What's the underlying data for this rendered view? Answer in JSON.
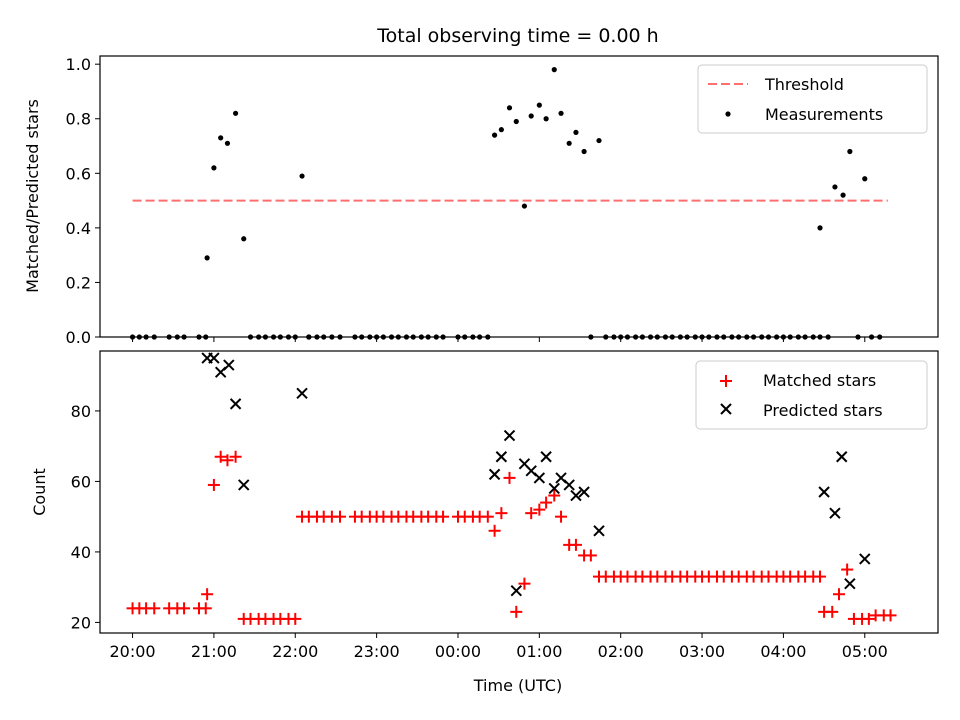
{
  "figure": {
    "title": "Total observing time = 0.00 h",
    "xlabel": "Time (UTC)"
  },
  "chart_data": [
    {
      "type": "scatter",
      "ylabel": "Matched/Predicted stars",
      "xlim": [
        19.6,
        5.9
      ],
      "x_ticks": [
        "20:00",
        "21:00",
        "22:00",
        "23:00",
        "00:00",
        "01:00",
        "02:00",
        "03:00",
        "04:00",
        "05:00"
      ],
      "ylim": [
        0.0,
        1.03
      ],
      "y_ticks": [
        "0.0",
        "0.2",
        "0.4",
        "0.6",
        "0.8",
        "1.0"
      ],
      "legend": {
        "position": "upper right",
        "entries": [
          "Threshold",
          "Measurements"
        ]
      },
      "threshold": {
        "name": "Threshold",
        "value": 0.5,
        "x_range": [
          "20:00",
          "05:17"
        ],
        "color": "#ff6f6f",
        "style": "dashed"
      },
      "series": [
        {
          "name": "Measurements",
          "color": "#000000",
          "marker": "dot",
          "points": [
            [
              "20:00",
              0
            ],
            [
              "20:05",
              0
            ],
            [
              "20:10",
              0
            ],
            [
              "20:16",
              0
            ],
            [
              "20:27",
              0
            ],
            [
              "20:33",
              0
            ],
            [
              "20:38",
              0
            ],
            [
              "20:49",
              0
            ],
            [
              "20:54",
              0
            ],
            [
              "20:55",
              0.29
            ],
            [
              "21:00",
              0.62
            ],
            [
              "21:05",
              0.73
            ],
            [
              "21:10",
              0.71
            ],
            [
              "21:16",
              0.82
            ],
            [
              "21:22",
              0.36
            ],
            [
              "21:27",
              0
            ],
            [
              "21:33",
              0
            ],
            [
              "21:38",
              0
            ],
            [
              "21:44",
              0
            ],
            [
              "21:49",
              0
            ],
            [
              "21:55",
              0
            ],
            [
              "22:00",
              0
            ],
            [
              "22:10",
              0
            ],
            [
              "22:05",
              0.59
            ],
            [
              "22:10",
              0
            ],
            [
              "22:16",
              0
            ],
            [
              "22:21",
              0
            ],
            [
              "22:27",
              0
            ],
            [
              "22:33",
              0
            ],
            [
              "22:44",
              0
            ],
            [
              "22:49",
              0
            ],
            [
              "22:55",
              0
            ],
            [
              "23:00",
              0
            ],
            [
              "23:05",
              0
            ],
            [
              "23:11",
              0
            ],
            [
              "23:16",
              0
            ],
            [
              "23:22",
              0
            ],
            [
              "23:27",
              0
            ],
            [
              "23:33",
              0
            ],
            [
              "23:38",
              0
            ],
            [
              "23:44",
              0
            ],
            [
              "23:49",
              0
            ],
            [
              "00:00",
              0
            ],
            [
              "00:05",
              0
            ],
            [
              "00:11",
              0
            ],
            [
              "00:16",
              0
            ],
            [
              "00:22",
              0
            ],
            [
              "00:27",
              0.74
            ],
            [
              "00:32",
              0.76
            ],
            [
              "00:38",
              0.84
            ],
            [
              "00:43",
              0.79
            ],
            [
              "00:49",
              0.48
            ],
            [
              "00:54",
              0.81
            ],
            [
              "01:00",
              0.85
            ],
            [
              "01:05",
              0.8
            ],
            [
              "01:11",
              0.98
            ],
            [
              "01:16",
              0.82
            ],
            [
              "01:22",
              0.71
            ],
            [
              "01:27",
              0.75
            ],
            [
              "01:33",
              0.68
            ],
            [
              "01:44",
              0.72
            ],
            [
              "01:38",
              0
            ],
            [
              "01:49",
              0
            ],
            [
              "01:55",
              0
            ],
            [
              "02:00",
              0
            ],
            [
              "02:05",
              0
            ],
            [
              "02:11",
              0
            ],
            [
              "02:16",
              0
            ],
            [
              "02:22",
              0
            ],
            [
              "02:27",
              0
            ],
            [
              "02:33",
              0
            ],
            [
              "02:38",
              0
            ],
            [
              "02:44",
              0
            ],
            [
              "02:49",
              0
            ],
            [
              "02:55",
              0
            ],
            [
              "03:00",
              0
            ],
            [
              "03:05",
              0
            ],
            [
              "03:11",
              0
            ],
            [
              "03:16",
              0
            ],
            [
              "03:22",
              0
            ],
            [
              "03:27",
              0
            ],
            [
              "03:33",
              0
            ],
            [
              "03:38",
              0
            ],
            [
              "03:44",
              0
            ],
            [
              "03:49",
              0
            ],
            [
              "03:55",
              0
            ],
            [
              "04:00",
              0
            ],
            [
              "04:05",
              0
            ],
            [
              "04:11",
              0
            ],
            [
              "04:16",
              0
            ],
            [
              "04:22",
              0
            ],
            [
              "04:27",
              0
            ],
            [
              "04:33",
              0
            ],
            [
              "04:27",
              0.4
            ],
            [
              "04:38",
              0.55
            ],
            [
              "04:44",
              0.52
            ],
            [
              "04:49",
              0.68
            ],
            [
              "05:00",
              0.58
            ],
            [
              "04:55",
              0
            ],
            [
              "05:05",
              0
            ],
            [
              "05:11",
              0
            ]
          ]
        }
      ]
    },
    {
      "type": "scatter",
      "ylabel": "Count",
      "xlim": [
        19.6,
        5.9
      ],
      "x_ticks": [
        "20:00",
        "21:00",
        "22:00",
        "23:00",
        "00:00",
        "01:00",
        "02:00",
        "03:00",
        "04:00",
        "05:00"
      ],
      "ylim": [
        17,
        97
      ],
      "y_ticks": [
        "20",
        "40",
        "60",
        "80"
      ],
      "legend": {
        "position": "upper right",
        "entries": [
          "Matched stars",
          "Predicted stars"
        ]
      },
      "series": [
        {
          "name": "Matched stars",
          "color": "#ff0000",
          "marker": "plus",
          "points": [
            [
              "20:00",
              24
            ],
            [
              "20:05",
              24
            ],
            [
              "20:10",
              24
            ],
            [
              "20:16",
              24
            ],
            [
              "20:27",
              24
            ],
            [
              "20:33",
              24
            ],
            [
              "20:38",
              24
            ],
            [
              "20:49",
              24
            ],
            [
              "20:54",
              24
            ],
            [
              "20:55",
              28
            ],
            [
              "21:00",
              59
            ],
            [
              "21:05",
              67
            ],
            [
              "21:10",
              66
            ],
            [
              "21:16",
              67
            ],
            [
              "21:22",
              21
            ],
            [
              "21:27",
              21
            ],
            [
              "21:33",
              21
            ],
            [
              "21:38",
              21
            ],
            [
              "21:44",
              21
            ],
            [
              "21:49",
              21
            ],
            [
              "21:55",
              21
            ],
            [
              "22:00",
              21
            ],
            [
              "22:05",
              50
            ],
            [
              "22:10",
              50
            ],
            [
              "22:16",
              50
            ],
            [
              "22:21",
              50
            ],
            [
              "22:27",
              50
            ],
            [
              "22:33",
              50
            ],
            [
              "22:44",
              50
            ],
            [
              "22:49",
              50
            ],
            [
              "22:55",
              50
            ],
            [
              "23:00",
              50
            ],
            [
              "23:05",
              50
            ],
            [
              "23:11",
              50
            ],
            [
              "23:16",
              50
            ],
            [
              "23:22",
              50
            ],
            [
              "23:27",
              50
            ],
            [
              "23:33",
              50
            ],
            [
              "23:38",
              50
            ],
            [
              "23:44",
              50
            ],
            [
              "23:49",
              50
            ],
            [
              "00:00",
              50
            ],
            [
              "00:05",
              50
            ],
            [
              "00:11",
              50
            ],
            [
              "00:16",
              50
            ],
            [
              "00:22",
              50
            ],
            [
              "00:27",
              46
            ],
            [
              "00:32",
              51
            ],
            [
              "00:38",
              61
            ],
            [
              "00:43",
              23
            ],
            [
              "00:49",
              31
            ],
            [
              "00:54",
              51
            ],
            [
              "01:00",
              52
            ],
            [
              "01:05",
              54
            ],
            [
              "01:11",
              56
            ],
            [
              "01:16",
              50
            ],
            [
              "01:22",
              42
            ],
            [
              "01:27",
              42
            ],
            [
              "01:33",
              39
            ],
            [
              "01:38",
              39
            ],
            [
              "01:44",
              33
            ],
            [
              "01:49",
              33
            ],
            [
              "01:55",
              33
            ],
            [
              "02:00",
              33
            ],
            [
              "02:05",
              33
            ],
            [
              "02:11",
              33
            ],
            [
              "02:16",
              33
            ],
            [
              "02:22",
              33
            ],
            [
              "02:27",
              33
            ],
            [
              "02:33",
              33
            ],
            [
              "02:38",
              33
            ],
            [
              "02:44",
              33
            ],
            [
              "02:49",
              33
            ],
            [
              "02:55",
              33
            ],
            [
              "03:00",
              33
            ],
            [
              "03:05",
              33
            ],
            [
              "03:11",
              33
            ],
            [
              "03:16",
              33
            ],
            [
              "03:22",
              33
            ],
            [
              "03:27",
              33
            ],
            [
              "03:33",
              33
            ],
            [
              "03:38",
              33
            ],
            [
              "03:44",
              33
            ],
            [
              "03:49",
              33
            ],
            [
              "03:55",
              33
            ],
            [
              "04:00",
              33
            ],
            [
              "04:05",
              33
            ],
            [
              "04:11",
              33
            ],
            [
              "04:16",
              33
            ],
            [
              "04:22",
              33
            ],
            [
              "04:27",
              33
            ],
            [
              "04:30",
              23
            ],
            [
              "04:36",
              23
            ],
            [
              "04:41",
              28
            ],
            [
              "04:47",
              35
            ],
            [
              "04:52",
              21
            ],
            [
              "04:58",
              21
            ],
            [
              "05:03",
              21
            ],
            [
              "05:08",
              22
            ],
            [
              "05:14",
              22
            ],
            [
              "05:19",
              22
            ]
          ]
        },
        {
          "name": "Predicted stars",
          "color": "#000000",
          "marker": "cross",
          "points": [
            [
              "20:55",
              95
            ],
            [
              "21:00",
              95
            ],
            [
              "21:05",
              91
            ],
            [
              "21:11",
              93
            ],
            [
              "21:16",
              82
            ],
            [
              "21:22",
              59
            ],
            [
              "22:05",
              85
            ],
            [
              "00:27",
              62
            ],
            [
              "00:32",
              67
            ],
            [
              "00:38",
              73
            ],
            [
              "00:43",
              29
            ],
            [
              "00:49",
              65
            ],
            [
              "00:54",
              63
            ],
            [
              "01:00",
              61
            ],
            [
              "01:05",
              67
            ],
            [
              "01:11",
              58
            ],
            [
              "01:16",
              61
            ],
            [
              "01:22",
              59
            ],
            [
              "01:27",
              56
            ],
            [
              "01:33",
              57
            ],
            [
              "01:44",
              46
            ],
            [
              "04:30",
              57
            ],
            [
              "04:38",
              51
            ],
            [
              "04:43",
              67
            ],
            [
              "04:49",
              31
            ],
            [
              "05:00",
              38
            ]
          ]
        }
      ]
    }
  ]
}
